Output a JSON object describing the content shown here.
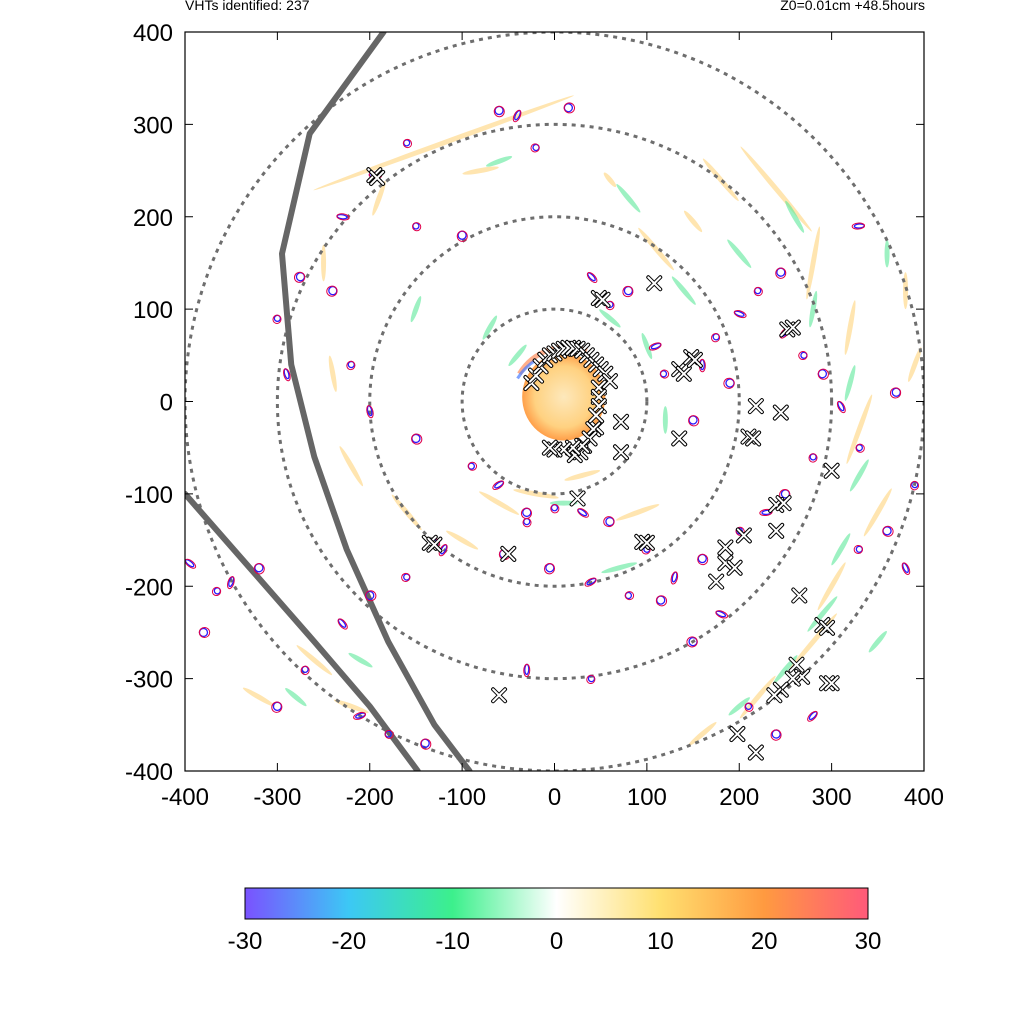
{
  "header": {
    "left_text": "VHTs identified: 237",
    "right_text": "Z0=0.01cm  +48.5hours"
  },
  "chart_data": {
    "type": "scatter",
    "title": "",
    "xlabel": "",
    "ylabel": "",
    "xlim": [
      -400,
      400
    ],
    "ylim": [
      -400,
      400
    ],
    "x_ticks": [
      -400,
      -300,
      -200,
      -100,
      0,
      100,
      200,
      300,
      400
    ],
    "y_ticks": [
      -400,
      -300,
      -200,
      -100,
      0,
      100,
      200,
      300,
      400
    ],
    "range_rings_radius": [
      100,
      200,
      300,
      400
    ],
    "colorbar": {
      "min": -30,
      "max": 30,
      "ticks": [
        -30,
        -20,
        -10,
        0,
        10,
        20,
        30
      ],
      "colors": [
        "#7a52ff",
        "#3cc8f5",
        "#3cf08c",
        "#ffffff",
        "#ffe070",
        "#ff9a40",
        "#ff5a7a"
      ]
    },
    "eye_core": {
      "center": [
        10,
        5
      ],
      "radius": 45,
      "color": "#ffc864"
    },
    "vht_markers": [
      [
        -195,
        245
      ],
      [
        -192,
        242
      ],
      [
        48,
        112
      ],
      [
        52,
        110
      ],
      [
        108,
        128
      ],
      [
        135,
        35
      ],
      [
        140,
        30
      ],
      [
        148,
        48
      ],
      [
        152,
        45
      ],
      [
        252,
        78
      ],
      [
        258,
        80
      ],
      [
        218,
        -5
      ],
      [
        245,
        -12
      ],
      [
        210,
        -38
      ],
      [
        215,
        -40
      ],
      [
        300,
        -75
      ],
      [
        45,
        -28
      ],
      [
        72,
        -22
      ],
      [
        72,
        -55
      ],
      [
        32,
        -48
      ],
      [
        28,
        -55
      ],
      [
        22,
        -58
      ],
      [
        135,
        -40
      ],
      [
        25,
        -105
      ],
      [
        95,
        -152
      ],
      [
        100,
        -153
      ],
      [
        240,
        -112
      ],
      [
        248,
        -110
      ],
      [
        240,
        -140
      ],
      [
        205,
        -145
      ],
      [
        185,
        -158
      ],
      [
        185,
        -175
      ],
      [
        195,
        -180
      ],
      [
        175,
        -195
      ],
      [
        265,
        -210
      ],
      [
        290,
        -242
      ],
      [
        295,
        -245
      ],
      [
        262,
        -285
      ],
      [
        268,
        -298
      ],
      [
        258,
        -300
      ],
      [
        295,
        -305
      ],
      [
        300,
        -305
      ],
      [
        245,
        -312
      ],
      [
        238,
        -318
      ],
      [
        -135,
        -153
      ],
      [
        -130,
        -155
      ],
      [
        -50,
        -165
      ],
      [
        -60,
        -318
      ],
      [
        198,
        -360
      ],
      [
        218,
        -380
      ]
    ],
    "eyewall_markers": [
      [
        -25,
        20
      ],
      [
        -20,
        28
      ],
      [
        -15,
        38
      ],
      [
        -10,
        45
      ],
      [
        -5,
        50
      ],
      [
        0,
        52
      ],
      [
        5,
        55
      ],
      [
        10,
        57
      ],
      [
        15,
        58
      ],
      [
        20,
        58
      ],
      [
        25,
        57
      ],
      [
        30,
        55
      ],
      [
        35,
        50
      ],
      [
        40,
        45
      ],
      [
        45,
        40
      ],
      [
        50,
        35
      ],
      [
        55,
        30
      ],
      [
        60,
        22
      ],
      [
        48,
        15
      ],
      [
        48,
        5
      ],
      [
        48,
        -5
      ],
      [
        45,
        -15
      ],
      [
        42,
        -30
      ],
      [
        38,
        -40
      ],
      [
        30,
        -48
      ],
      [
        20,
        -50
      ],
      [
        10,
        -52
      ],
      [
        0,
        -52
      ],
      [
        -5,
        -50
      ]
    ],
    "cyclonic_contours": [
      [
        -130,
        -153
      ],
      [
        -55,
        -165
      ],
      [
        -290,
        30
      ],
      [
        -300,
        90
      ],
      [
        -275,
        135
      ],
      [
        -195,
        245
      ],
      [
        -160,
        280
      ],
      [
        -60,
        315
      ],
      [
        -40,
        310
      ],
      [
        -20,
        275
      ],
      [
        15,
        318
      ],
      [
        40,
        135
      ],
      [
        60,
        105
      ],
      [
        80,
        120
      ],
      [
        110,
        60
      ],
      [
        118,
        30
      ],
      [
        150,
        -20
      ],
      [
        160,
        40
      ],
      [
        175,
        70
      ],
      [
        190,
        20
      ],
      [
        200,
        95
      ],
      [
        220,
        120
      ],
      [
        245,
        140
      ],
      [
        250,
        75
      ],
      [
        270,
        50
      ],
      [
        290,
        30
      ],
      [
        310,
        -5
      ],
      [
        280,
        -60
      ],
      [
        250,
        -100
      ],
      [
        230,
        -120
      ],
      [
        200,
        -140
      ],
      [
        160,
        -170
      ],
      [
        130,
        -190
      ],
      [
        100,
        -160
      ],
      [
        60,
        -130
      ],
      [
        30,
        -120
      ],
      [
        0,
        -115
      ],
      [
        -30,
        -120
      ],
      [
        -60,
        -90
      ],
      [
        -90,
        -70
      ],
      [
        -150,
        -40
      ],
      [
        -200,
        -10
      ],
      [
        -220,
        40
      ],
      [
        -240,
        120
      ],
      [
        -230,
        200
      ],
      [
        -150,
        190
      ],
      [
        -100,
        180
      ],
      [
        -120,
        -160
      ],
      [
        -160,
        -190
      ],
      [
        -200,
        -210
      ],
      [
        -230,
        -240
      ],
      [
        -270,
        -290
      ],
      [
        -300,
        -330
      ],
      [
        -210,
        -340
      ],
      [
        -180,
        -360
      ],
      [
        -140,
        -370
      ],
      [
        -30,
        -290
      ],
      [
        40,
        -300
      ],
      [
        150,
        -260
      ],
      [
        180,
        -230
      ],
      [
        210,
        -330
      ],
      [
        240,
        -360
      ],
      [
        280,
        -340
      ],
      [
        330,
        -160
      ],
      [
        360,
        -140
      ],
      [
        380,
        -180
      ],
      [
        390,
        -90
      ],
      [
        370,
        10
      ],
      [
        330,
        190
      ],
      [
        330,
        -50
      ],
      [
        -320,
        -180
      ],
      [
        -350,
        -195
      ],
      [
        -365,
        -205
      ],
      [
        -380,
        -250
      ],
      [
        -395,
        -175
      ],
      [
        -30,
        -130
      ],
      [
        -5,
        -180
      ],
      [
        40,
        -195
      ],
      [
        80,
        -210
      ],
      [
        115,
        -215
      ]
    ],
    "bands": {
      "positive": [
        [
          -120,
          280,
          160,
          300
        ],
        [
          -80,
          250,
          170,
          40
        ],
        [
          60,
          240,
          230,
          20
        ],
        [
          110,
          165,
          230,
          60
        ],
        [
          150,
          195,
          230,
          30
        ],
        [
          180,
          240,
          230,
          60
        ],
        [
          240,
          230,
          230,
          120
        ],
        [
          280,
          150,
          280,
          80
        ],
        [
          320,
          80,
          280,
          60
        ],
        [
          330,
          -30,
          290,
          80
        ],
        [
          350,
          -120,
          300,
          60
        ],
        [
          300,
          -200,
          300,
          60
        ],
        [
          280,
          -260,
          310,
          80
        ],
        [
          220,
          -320,
          310,
          60
        ],
        [
          160,
          -360,
          320,
          40
        ],
        [
          90,
          -120,
          340,
          50
        ],
        [
          30,
          -80,
          345,
          40
        ],
        [
          -20,
          -100,
          10,
          50
        ],
        [
          -60,
          -110,
          30,
          50
        ],
        [
          -100,
          -150,
          30,
          40
        ],
        [
          -160,
          -120,
          50,
          50
        ],
        [
          -220,
          -70,
          60,
          50
        ],
        [
          -240,
          30,
          80,
          40
        ],
        [
          -250,
          150,
          90,
          40
        ],
        [
          -190,
          220,
          110,
          40
        ],
        [
          -260,
          -280,
          40,
          50
        ],
        [
          -220,
          -330,
          20,
          40
        ],
        [
          -320,
          -320,
          30,
          40
        ],
        [
          380,
          120,
          270,
          40
        ],
        [
          390,
          40,
          290,
          40
        ]
      ],
      "negative": [
        [
          -60,
          260,
          160,
          30
        ],
        [
          80,
          220,
          230,
          40
        ],
        [
          140,
          120,
          230,
          40
        ],
        [
          200,
          160,
          230,
          40
        ],
        [
          260,
          200,
          240,
          40
        ],
        [
          280,
          100,
          280,
          40
        ],
        [
          320,
          20,
          285,
          40
        ],
        [
          330,
          -80,
          300,
          40
        ],
        [
          310,
          -160,
          300,
          40
        ],
        [
          290,
          -230,
          310,
          50
        ],
        [
          250,
          -290,
          310,
          40
        ],
        [
          200,
          -330,
          320,
          30
        ],
        [
          70,
          -180,
          345,
          40
        ],
        [
          10,
          -110,
          0,
          30
        ],
        [
          -70,
          80,
          120,
          30
        ],
        [
          -40,
          50,
          130,
          30
        ],
        [
          -150,
          100,
          110,
          30
        ],
        [
          -280,
          -320,
          40,
          30
        ],
        [
          -210,
          -280,
          30,
          30
        ],
        [
          360,
          160,
          270,
          30
        ],
        [
          350,
          -260,
          310,
          30
        ],
        [
          120,
          -20,
          270,
          30
        ],
        [
          100,
          60,
          250,
          30
        ],
        [
          60,
          90,
          220,
          30
        ]
      ]
    },
    "storm_tracks": [
      [
        [
          -185,
          400
        ],
        [
          -265,
          290
        ],
        [
          -295,
          160
        ],
        [
          -285,
          40
        ],
        [
          -260,
          -60
        ],
        [
          -225,
          -160
        ],
        [
          -180,
          -260
        ],
        [
          -130,
          -350
        ],
        [
          -92,
          -400
        ]
      ],
      [
        [
          -400,
          -100
        ],
        [
          -330,
          -180
        ],
        [
          -260,
          -260
        ],
        [
          -200,
          -330
        ],
        [
          -148,
          -400
        ]
      ]
    ]
  }
}
